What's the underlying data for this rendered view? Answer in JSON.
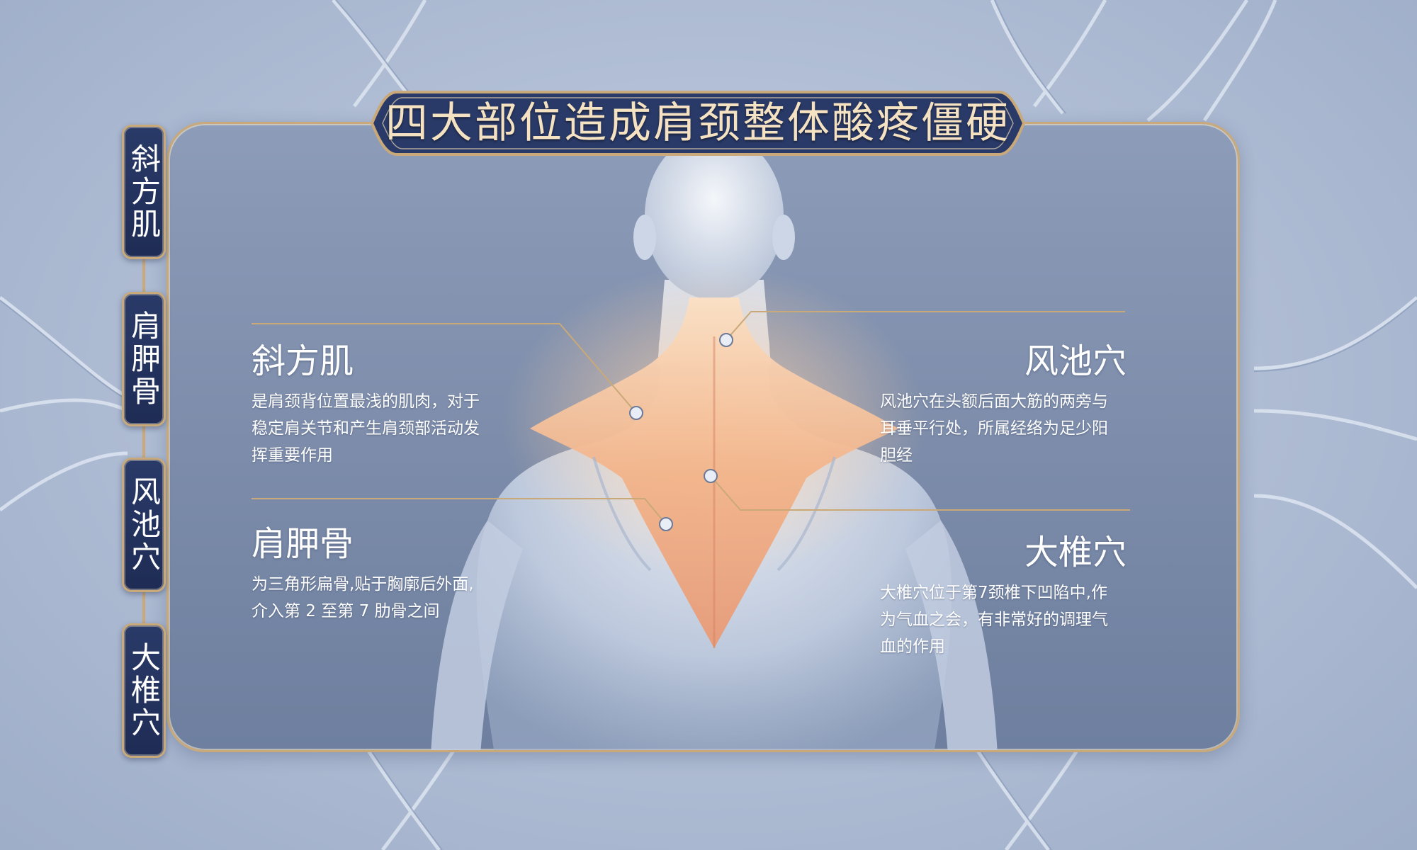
{
  "title": "四大部位造成肩颈整体酸疼僵硬",
  "tabs": [
    {
      "label": "斜方肌"
    },
    {
      "label": "肩胛骨"
    },
    {
      "label": "风池穴"
    },
    {
      "label": "大椎穴"
    }
  ],
  "sections": {
    "trapezius": {
      "heading": "斜方肌",
      "lines": [
        "是肩颈背位置最浅的肌肉，对于",
        "稳定肩关节和产生肩颈部活动发",
        "挥重要作用"
      ]
    },
    "scapula": {
      "heading": "肩胛骨",
      "lines": [
        "为三角形扁骨,贴于胸廓后外面,",
        "介入第 2 至第 7 肋骨之间"
      ]
    },
    "fengchi": {
      "heading": "风池穴",
      "lines": [
        "风池穴在头额后面大筋的两旁与",
        "耳垂平行处，所属经络为足少阳",
        "胆经"
      ]
    },
    "dazhui": {
      "heading": "大椎穴",
      "lines": [
        "大椎穴位于第7颈椎下凹陷中,作",
        "为气血之会，有非常好的调理气",
        "血的作用"
      ]
    }
  },
  "colors": {
    "gold": "#c9a979",
    "navy": "#1e2c55",
    "panel": "#7b8ba9",
    "muscle_glow": "#f2b48a"
  }
}
